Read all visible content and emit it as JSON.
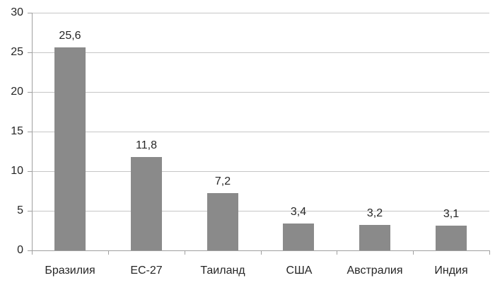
{
  "chart_data": {
    "type": "bar",
    "title": "",
    "xlabel": "",
    "ylabel": "",
    "categories": [
      "Бразилия",
      "ЕС-27",
      "Таиланд",
      "США",
      "Австралия",
      "Индия"
    ],
    "values": [
      25.6,
      11.8,
      7.2,
      3.4,
      3.2,
      3.1
    ],
    "value_labels": [
      "25,6",
      "11,8",
      "7,2",
      "3,4",
      "3,2",
      "3,1"
    ],
    "ylim": [
      0,
      30
    ],
    "yticks": [
      0,
      5,
      10,
      15,
      20,
      25,
      30
    ],
    "ytick_labels": [
      "0",
      "5",
      "10",
      "15",
      "20",
      "25",
      "30"
    ],
    "grid": "horizontal",
    "legend": "none",
    "colors": {
      "bar": "#8a8a8a",
      "gridline": "#c6c6c6",
      "axis": "#a0a0a0",
      "text": "#262626",
      "background": "#ffffff"
    }
  }
}
